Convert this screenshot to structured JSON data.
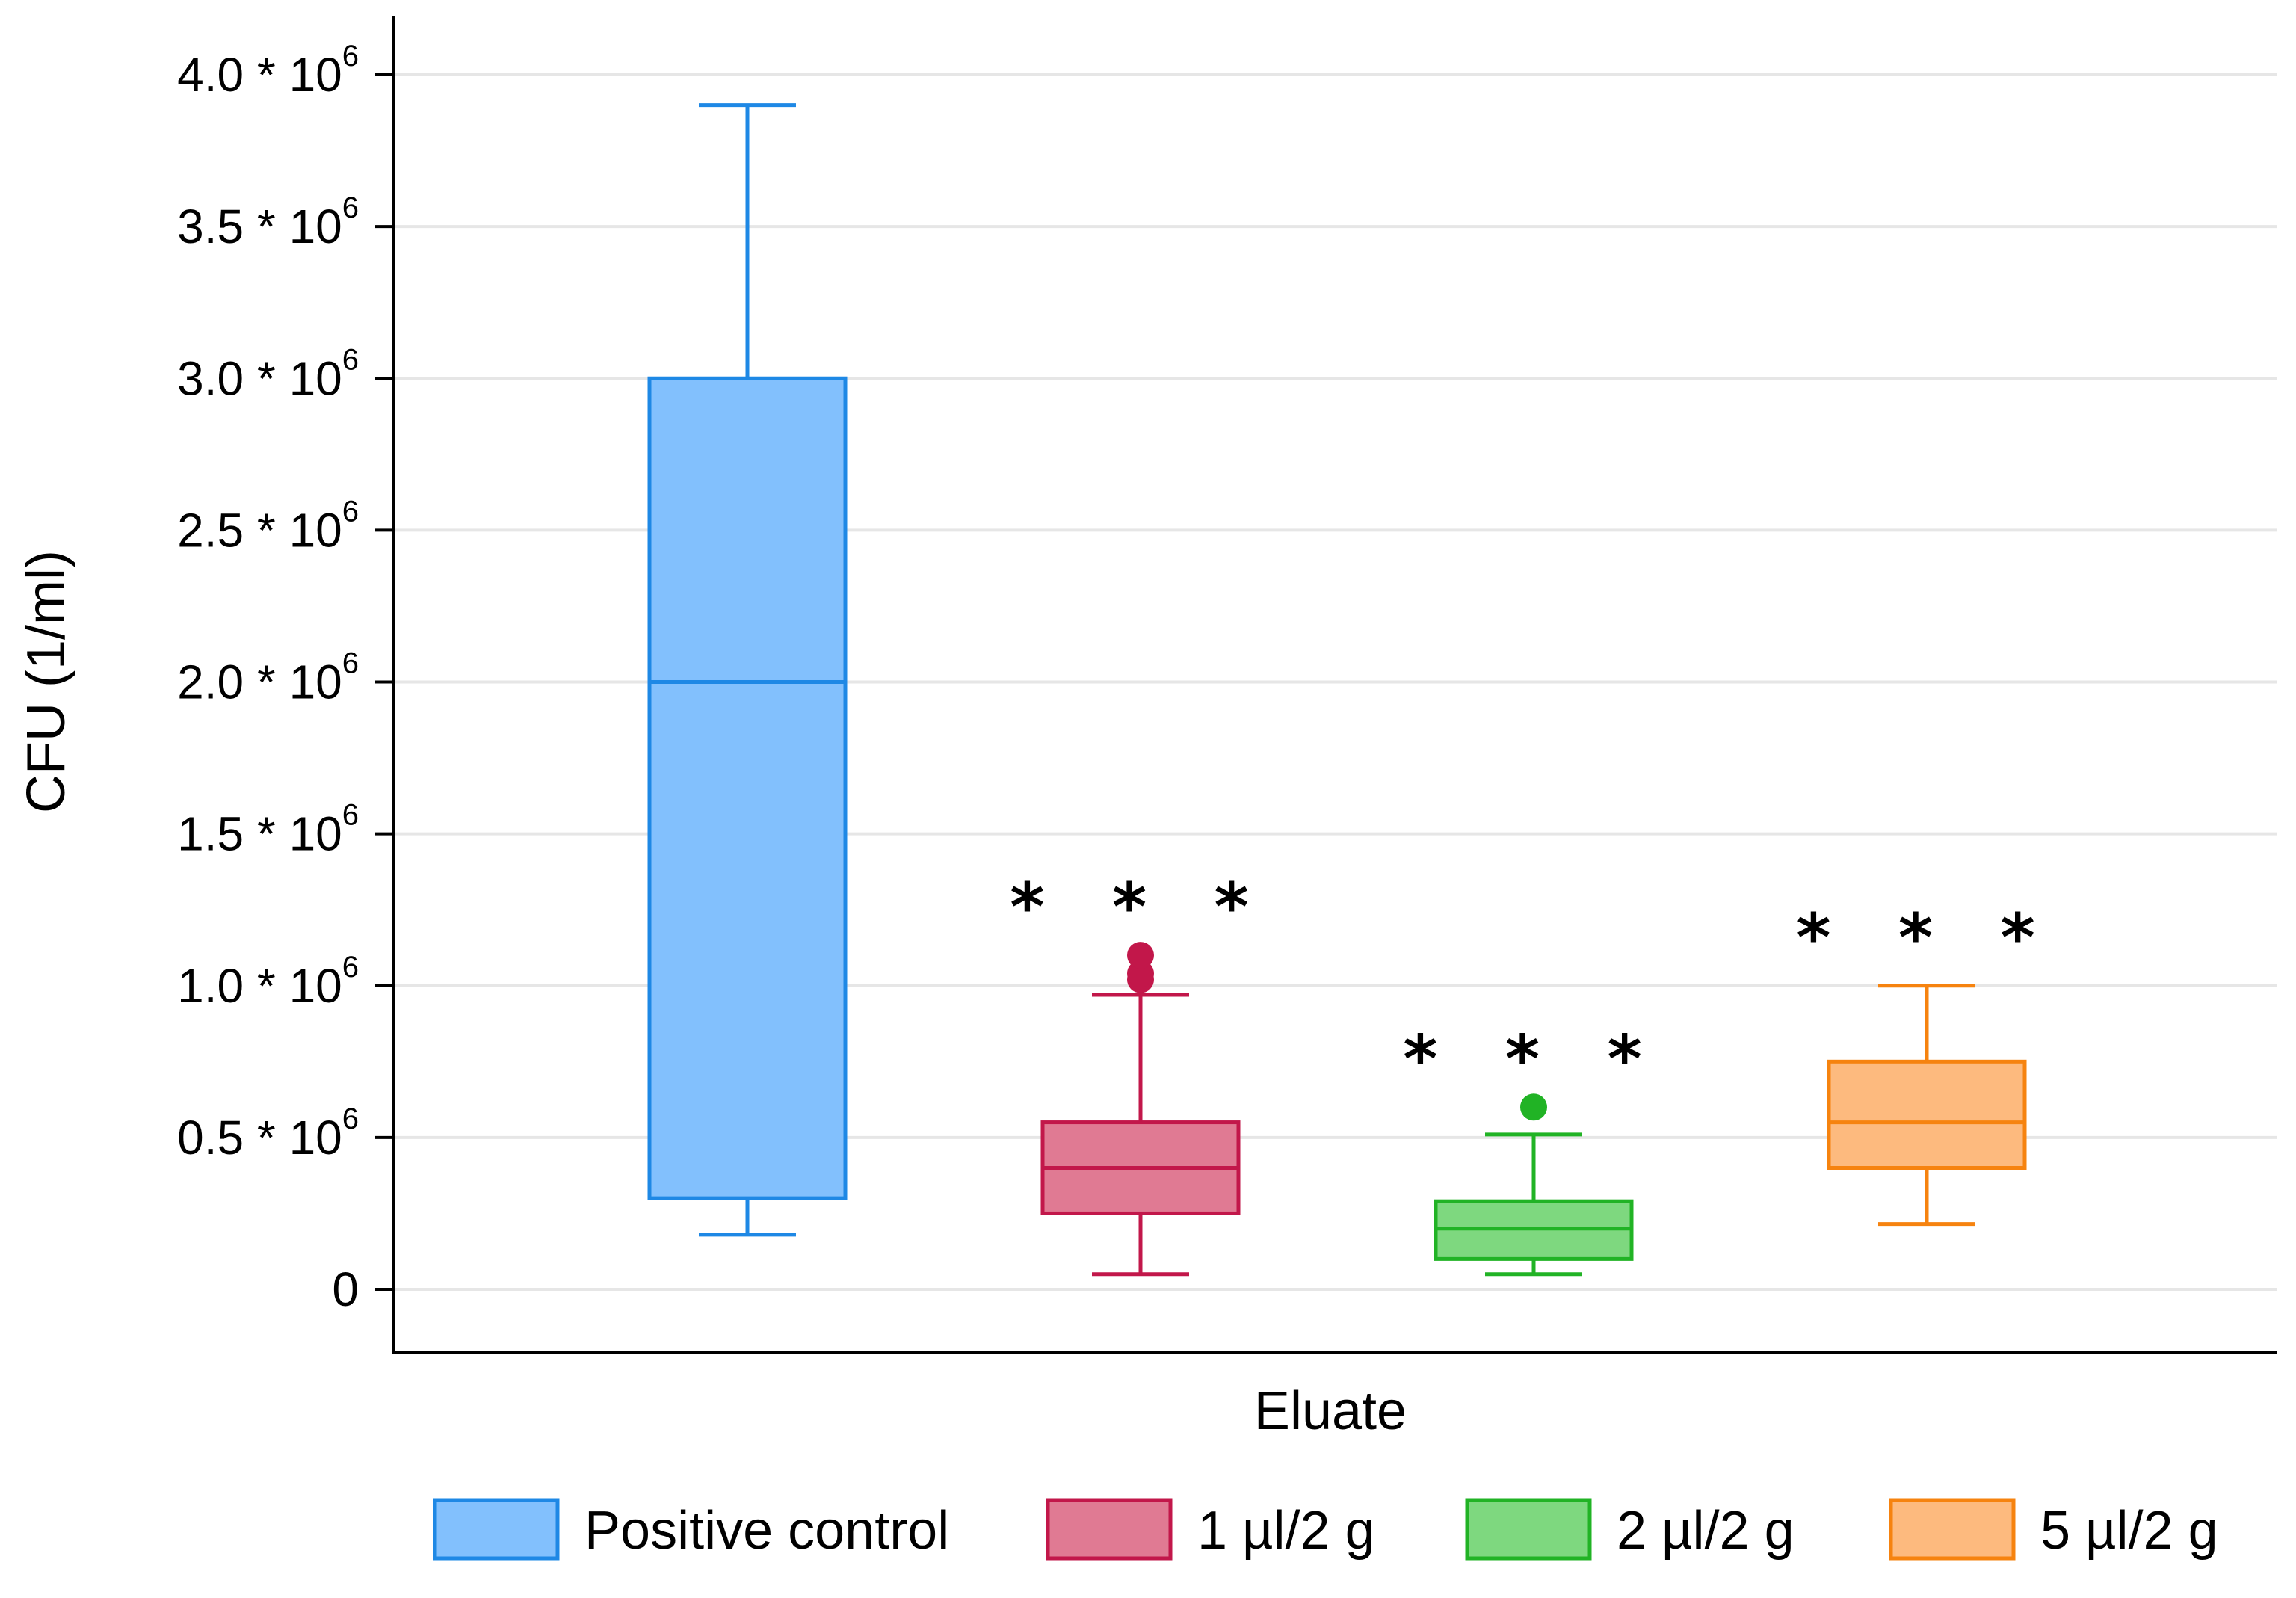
{
  "chart_data": {
    "type": "boxplot",
    "title": "",
    "xlabel": "Eluate",
    "ylabel": "CFU (1/ml)",
    "ylim": [
      0,
      4000000
    ],
    "y_ticks": [
      {
        "value": 0,
        "mantissa": "0",
        "exponent": ""
      },
      {
        "value": 500000,
        "mantissa": "0.5 * 10",
        "exponent": "6"
      },
      {
        "value": 1000000,
        "mantissa": "1.0 * 10",
        "exponent": "6"
      },
      {
        "value": 1500000,
        "mantissa": "1.5 * 10",
        "exponent": "6"
      },
      {
        "value": 2000000,
        "mantissa": "2.0 * 10",
        "exponent": "6"
      },
      {
        "value": 2500000,
        "mantissa": "2.5 * 10",
        "exponent": "6"
      },
      {
        "value": 3000000,
        "mantissa": "3.0 * 10",
        "exponent": "6"
      },
      {
        "value": 3500000,
        "mantissa": "3.5 * 10",
        "exponent": "6"
      },
      {
        "value": 4000000,
        "mantissa": "4.0 * 10",
        "exponent": "6"
      }
    ],
    "grid": true,
    "legend_position": "bottom",
    "series": [
      {
        "name": "Positive control",
        "whisker_low": 180000,
        "q1": 300000,
        "median": 2000000,
        "q3": 3000000,
        "whisker_high": 3900000,
        "outliers": [],
        "significance": "",
        "stroke": "#1E88E5",
        "fill": "#82C0FD"
      },
      {
        "name": "1 µl/2 g",
        "whisker_low": 50000,
        "q1": 250000,
        "median": 400000,
        "q3": 550000,
        "whisker_high": 970000,
        "outliers": [
          1020000,
          1040000,
          1100000
        ],
        "significance": "* * *",
        "stroke": "#C2174A",
        "fill": "#E07A93"
      },
      {
        "name": "2 µl/2 g",
        "whisker_low": 50000,
        "q1": 100000,
        "median": 200000,
        "q3": 290000,
        "whisker_high": 510000,
        "outliers": [
          600000
        ],
        "significance": "* * *",
        "stroke": "#21B325",
        "fill": "#7ED87F"
      },
      {
        "name": "5 µl/2 g",
        "whisker_low": 215000,
        "q1": 400000,
        "median": 550000,
        "q3": 750000,
        "whisker_high": 1000000,
        "outliers": [],
        "significance": "* * *",
        "stroke": "#F6830F",
        "fill": "#FDBA7E"
      }
    ]
  }
}
